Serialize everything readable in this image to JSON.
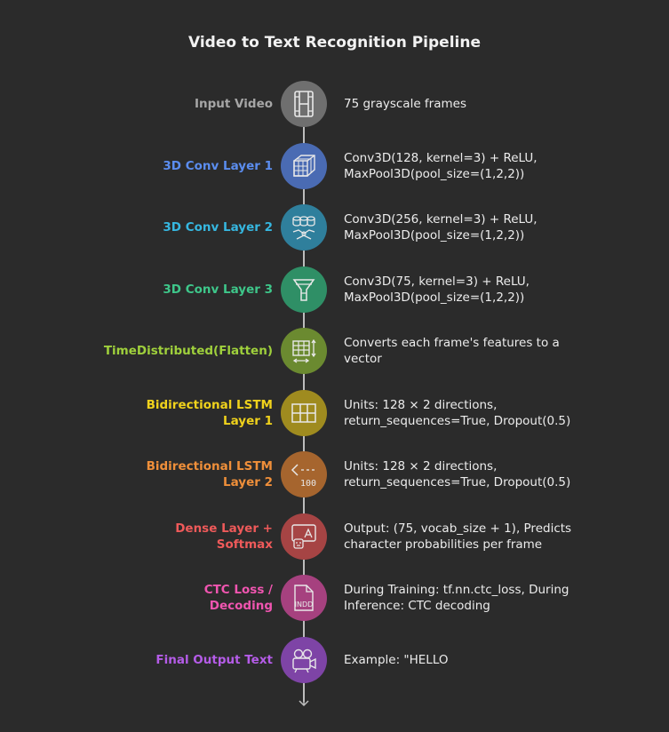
{
  "title": "Video to Text Recognition Pipeline",
  "steps": [
    {
      "label": [
        "Input Video"
      ],
      "desc": [
        "75 grayscale frames"
      ],
      "color": "#a6a6a6",
      "node": "#6f6f6f",
      "icon": "film-strip-icon"
    },
    {
      "label": [
        "3D Conv Layer 1"
      ],
      "desc": [
        "Conv3D(128, kernel=3) + ReLU,",
        "MaxPool3D(pool_size=(1,2,2))"
      ],
      "color": "#5b8def",
      "node": "#4a6bb3",
      "icon": "cube-grid-icon"
    },
    {
      "label": [
        "3D Conv Layer 2"
      ],
      "desc": [
        "Conv3D(256, kernel=3) + ReLU,",
        "MaxPool3D(pool_size=(1,2,2))"
      ],
      "color": "#36b7e0",
      "node": "#2f7f9c",
      "icon": "database-network-icon"
    },
    {
      "label": [
        "3D Conv Layer 3"
      ],
      "desc": [
        "Conv3D(75, kernel=3) + ReLU,",
        "MaxPool3D(pool_size=(1,2,2))"
      ],
      "color": "#3ec78a",
      "node": "#2f8f66",
      "icon": "funnel-icon"
    },
    {
      "label": [
        "TimeDistributed(Flatten)"
      ],
      "desc": [
        "Converts each frame's features to a",
        "vector"
      ],
      "color": "#9fd03c",
      "node": "#6b8a30",
      "icon": "table-resize-icon"
    },
    {
      "label": [
        "Bidirectional LSTM",
        "Layer 1"
      ],
      "desc": [
        "Units: 128 × 2 directions,",
        "return_sequences=True, Dropout(0.5)"
      ],
      "color": "#f0d21c",
      "node": "#9f8b1f",
      "icon": "grid-layout-icon"
    },
    {
      "label": [
        "Bidirectional LSTM",
        "Layer 2"
      ],
      "desc": [
        "Units: 128 × 2 directions,",
        "return_sequences=True, Dropout(0.5)"
      ],
      "color": "#ef8f3a",
      "node": "#a6652e",
      "icon": "number-arrow-icon"
    },
    {
      "label": [
        "Dense Layer +",
        "Softmax"
      ],
      "desc": [
        "Output: (75, vocab_size + 1), Predicts",
        "character probabilities per frame"
      ],
      "color": "#ef5a5a",
      "node": "#a64444",
      "icon": "robot-image-icon"
    },
    {
      "label": [
        "CTC Loss /",
        "Decoding"
      ],
      "desc": [
        "During Training: tf.nn.ctc_loss, During",
        "Inference: CTC decoding"
      ],
      "color": "#f055b0",
      "node": "#a6417f",
      "icon": "indd-file-icon"
    },
    {
      "label": [
        "Final Output Text"
      ],
      "desc": [
        "Example: \"HELLO"
      ],
      "color": "#b55ce8",
      "node": "#7e44a6",
      "icon": "video-camera-icon"
    }
  ]
}
